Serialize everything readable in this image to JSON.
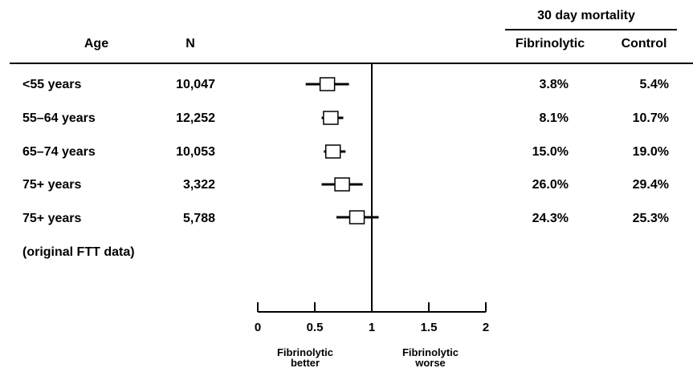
{
  "header": {
    "col_age": "Age",
    "col_n": "N",
    "group_title": "30 day mortality",
    "col_fibrinolytic": "Fibrinolytic",
    "col_control": "Control"
  },
  "rows": [
    {
      "age": "<55 years",
      "n": "10,047",
      "fibrinolytic": "3.8%",
      "control": "5.4%"
    },
    {
      "age": "55–64 years",
      "n": "12,252",
      "fibrinolytic": "8.1%",
      "control": "10.7%"
    },
    {
      "age": "65–74 years",
      "n": "10,053",
      "fibrinolytic": "15.0%",
      "control": "19.0%"
    },
    {
      "age": "75+ years",
      "n": "3,322",
      "fibrinolytic": "26.0%",
      "control": "29.4%"
    },
    {
      "age": "75+ years",
      "n": "5,788",
      "fibrinolytic": "24.3%",
      "control": "25.3%"
    }
  ],
  "footnote_row": "(original FTT data)",
  "axis": {
    "ticks": [
      "0",
      "0.5",
      "1",
      "1.5",
      "2"
    ],
    "left_label_line1": "Fibrinolytic",
    "left_label_line2": "better",
    "right_label_line1": "Fibrinolytic",
    "right_label_line2": "worse"
  },
  "chart_data": {
    "type": "forest",
    "xlim": [
      0,
      2
    ],
    "reference_line": 1,
    "categories": [
      "<55 years",
      "55–64 years",
      "65–74 years",
      "75+ years",
      "75+ years"
    ],
    "series": [
      {
        "estimate": [
          0.61,
          0.64,
          0.66,
          0.74,
          0.87
        ],
        "ci_low": [
          0.42,
          0.56,
          0.58,
          0.56,
          0.69
        ],
        "ci_high": [
          0.8,
          0.75,
          0.77,
          0.92,
          1.06
        ]
      }
    ]
  }
}
